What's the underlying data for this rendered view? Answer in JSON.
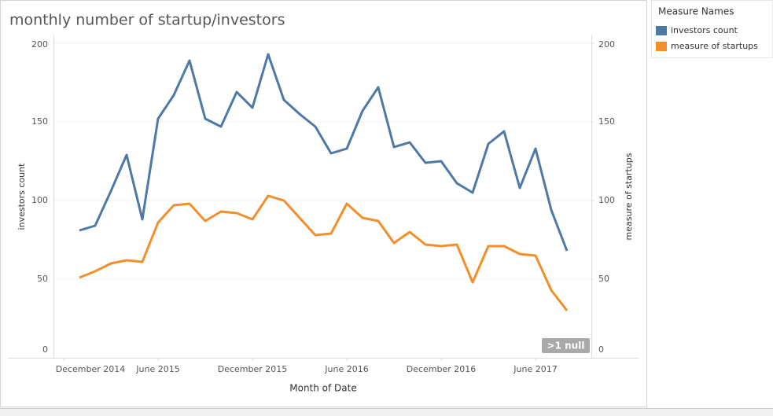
{
  "chart_data": {
    "type": "line",
    "title": "monthly number of  startup/investors",
    "x_label": "Month of Date",
    "y_label": "investors count",
    "y2_label": "measure of startups",
    "legend_title": "Measure Names",
    "legend_position": "right",
    "null_indicator": ">1 null",
    "x": [
      "2015-01",
      "2015-02",
      "2015-03",
      "2015-04",
      "2015-05",
      "2015-06",
      "2015-07",
      "2015-08",
      "2015-09",
      "2015-10",
      "2015-11",
      "2015-12",
      "2016-01",
      "2016-02",
      "2016-03",
      "2016-04",
      "2016-05",
      "2016-06",
      "2016-07",
      "2016-08",
      "2016-09",
      "2016-10",
      "2016-11",
      "2016-12",
      "2017-01",
      "2017-02",
      "2017-03",
      "2017-04",
      "2017-05",
      "2017-06",
      "2017-07",
      "2017-08"
    ],
    "xticks": [
      {
        "value": "2014-12",
        "label": "December 2014"
      },
      {
        "value": "2015-06",
        "label": "June 2015"
      },
      {
        "value": "2015-12",
        "label": "December 2015"
      },
      {
        "value": "2016-06",
        "label": "June 2016"
      },
      {
        "value": "2016-12",
        "label": "December 2016"
      },
      {
        "value": "2017-06",
        "label": "June 2017"
      }
    ],
    "ylim": [
      0,
      200
    ],
    "yticks": [
      0,
      50,
      100,
      150,
      200
    ],
    "y2lim": [
      0,
      200
    ],
    "y2ticks": [
      0,
      50,
      100,
      150,
      200
    ],
    "grid": true,
    "series": [
      {
        "name": "investors count",
        "color": "#4e79a7",
        "values": [
          81,
          84,
          106,
          129,
          88,
          152,
          167,
          189,
          152,
          147,
          169,
          159,
          193,
          164,
          155,
          147,
          130,
          133,
          157,
          172,
          134,
          137,
          124,
          125,
          111,
          105,
          136,
          144,
          108,
          133,
          94,
          68
        ]
      },
      {
        "name": "measure of startups",
        "color": "#f28e2b",
        "axis": "y2",
        "values": [
          51,
          55,
          60,
          62,
          61,
          86,
          97,
          98,
          87,
          93,
          92,
          88,
          103,
          100,
          89,
          78,
          79,
          98,
          89,
          87,
          73,
          80,
          72,
          71,
          72,
          48,
          71,
          71,
          66,
          65,
          43,
          30
        ]
      }
    ]
  }
}
